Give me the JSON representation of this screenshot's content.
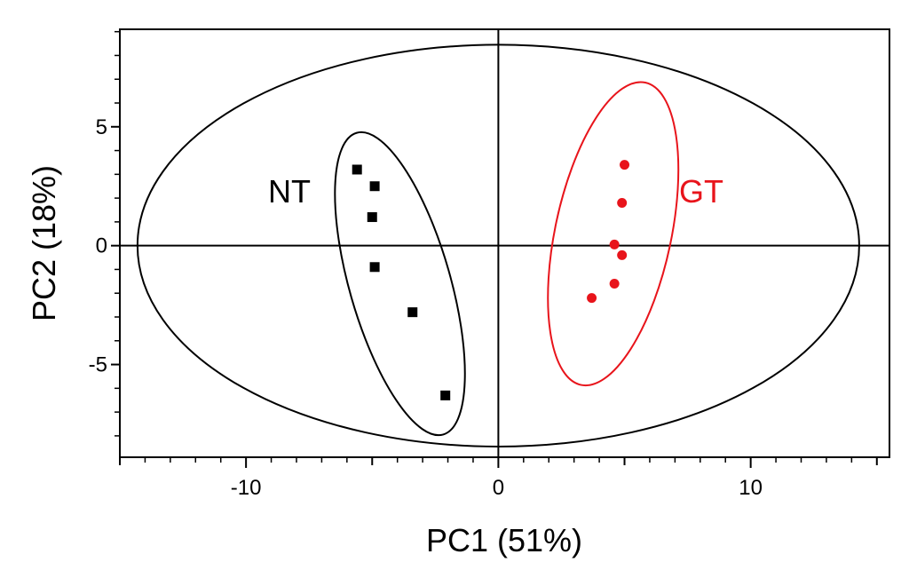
{
  "chart_data": {
    "type": "scatter",
    "xlabel": "PC1 (51%)",
    "ylabel": "PC2 (18%)",
    "xlim": [
      -15,
      15.5
    ],
    "ylim": [
      -8.9,
      9.1
    ],
    "x_ticks": [
      -10,
      0,
      10
    ],
    "y_ticks": [
      -5,
      0,
      5
    ],
    "x_tick_labels": [
      "-10",
      "0",
      "10"
    ],
    "y_tick_labels": [
      "-5",
      "0",
      "5"
    ],
    "grid": false,
    "reference_lines": {
      "x": 0,
      "y": 0
    },
    "confidence_ellipse": {
      "center": [
        0,
        0
      ],
      "rx": 14.3,
      "ry": 8.45
    },
    "series": [
      {
        "name": "NT",
        "color": "#000000",
        "marker": "square",
        "points": [
          {
            "x": -5.6,
            "y": 3.2
          },
          {
            "x": -4.9,
            "y": 2.5
          },
          {
            "x": -5.0,
            "y": 1.2
          },
          {
            "x": -4.9,
            "y": -0.9
          },
          {
            "x": -3.4,
            "y": -2.8
          },
          {
            "x": -2.1,
            "y": -6.3
          }
        ],
        "ellipse": {
          "center": [
            -3.9,
            -1.6
          ],
          "rx": 2.0,
          "ry": 6.6,
          "rotation_deg": -16
        }
      },
      {
        "name": "GT",
        "color": "#e8141b",
        "marker": "circle",
        "points": [
          {
            "x": 5.0,
            "y": 3.4
          },
          {
            "x": 4.9,
            "y": 1.8
          },
          {
            "x": 4.6,
            "y": 0.05
          },
          {
            "x": 4.9,
            "y": -0.4
          },
          {
            "x": 4.6,
            "y": -1.6
          },
          {
            "x": 3.7,
            "y": -2.2
          }
        ],
        "ellipse": {
          "center": [
            4.55,
            0.5
          ],
          "rx": 2.3,
          "ry": 6.5,
          "rotation_deg": 12
        }
      }
    ]
  }
}
